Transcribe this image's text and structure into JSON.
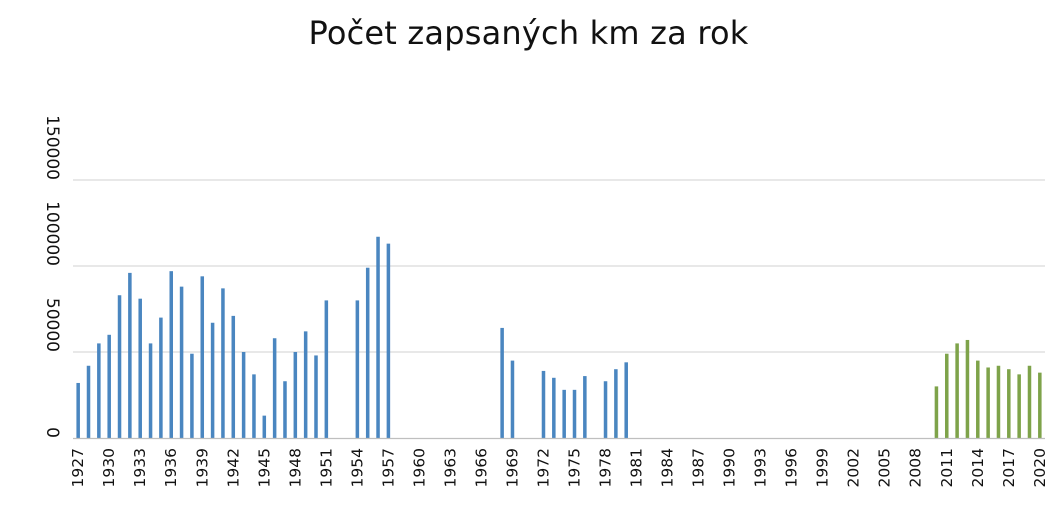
{
  "chart_data": {
    "type": "bar",
    "title": "Počet zapsaných km za rok",
    "xlabel": "",
    "ylabel": "",
    "ylim": [
      0,
      150000
    ],
    "yticks": [
      0,
      50000,
      100000,
      150000
    ],
    "grid": true,
    "legend": "none",
    "colors": {
      "series_1": "#4a86c0",
      "series_2": "#7ea34a",
      "grid": "#d9d9d9",
      "axis": "#bfbfbf"
    },
    "x": [
      1927,
      1928,
      1929,
      1930,
      1931,
      1932,
      1933,
      1934,
      1935,
      1936,
      1937,
      1938,
      1939,
      1940,
      1941,
      1942,
      1943,
      1944,
      1945,
      1946,
      1947,
      1948,
      1949,
      1950,
      1951,
      1952,
      1953,
      1954,
      1955,
      1956,
      1957,
      1958,
      1959,
      1960,
      1961,
      1962,
      1963,
      1964,
      1965,
      1966,
      1967,
      1968,
      1969,
      1970,
      1971,
      1972,
      1973,
      1974,
      1975,
      1976,
      1977,
      1978,
      1979,
      1980,
      1981,
      1982,
      1983,
      1984,
      1985,
      1986,
      1987,
      1988,
      1989,
      1990,
      1991,
      1992,
      1993,
      1994,
      1995,
      1996,
      1997,
      1998,
      1999,
      2000,
      2001,
      2002,
      2003,
      2004,
      2005,
      2006,
      2007,
      2008,
      2009,
      2010,
      2011,
      2012,
      2013,
      2014,
      2015,
      2016,
      2017,
      2018,
      2019,
      2020
    ],
    "x_tick_labels": [
      "1927",
      "1930",
      "1933",
      "1936",
      "1939",
      "1942",
      "1945",
      "1948",
      "1951",
      "1954",
      "1957",
      "1960",
      "1963",
      "1966",
      "1969",
      "1972",
      "1975",
      "1978",
      "1981",
      "1984",
      "1987",
      "1990",
      "1993",
      "1996",
      "1999",
      "2002",
      "2005",
      "2008",
      "2011",
      "2014",
      "2017",
      "2020"
    ],
    "series": [
      {
        "values": [
          32000,
          42000,
          55000,
          60000,
          83000,
          96000,
          81000,
          55000,
          70000,
          97000,
          88000,
          49000,
          94000,
          67000,
          87000,
          71000,
          50000,
          37000,
          13000,
          58000,
          33000,
          50000,
          62000,
          48000,
          80000,
          0,
          0,
          80000,
          99000,
          117000,
          113000,
          0,
          0,
          0,
          0,
          0,
          0,
          0,
          0,
          0,
          0,
          64000,
          45000,
          0,
          0,
          39000,
          35000,
          28000,
          28000,
          36000,
          0,
          33000,
          40000,
          44000,
          0,
          0,
          0,
          0,
          0,
          0,
          0,
          0,
          0,
          0,
          0,
          0,
          0,
          0,
          0,
          0,
          0,
          0,
          0,
          0,
          0,
          0,
          0,
          0,
          0,
          0,
          0,
          0,
          0,
          0,
          0,
          0,
          0,
          0,
          0,
          0,
          0,
          0,
          0,
          0
        ]
      },
      {
        "values": [
          0,
          0,
          0,
          0,
          0,
          0,
          0,
          0,
          0,
          0,
          0,
          0,
          0,
          0,
          0,
          0,
          0,
          0,
          0,
          0,
          0,
          0,
          0,
          0,
          0,
          0,
          0,
          0,
          0,
          0,
          0,
          0,
          0,
          0,
          0,
          0,
          0,
          0,
          0,
          0,
          0,
          0,
          0,
          0,
          0,
          0,
          0,
          0,
          0,
          0,
          0,
          0,
          0,
          0,
          0,
          0,
          0,
          0,
          0,
          0,
          0,
          0,
          0,
          0,
          0,
          0,
          0,
          0,
          0,
          0,
          0,
          0,
          0,
          0,
          0,
          0,
          0,
          0,
          0,
          0,
          0,
          0,
          0,
          30000,
          49000,
          55000,
          57000,
          45000,
          41000,
          42000,
          40000,
          37000,
          42000,
          38000
        ]
      }
    ]
  }
}
